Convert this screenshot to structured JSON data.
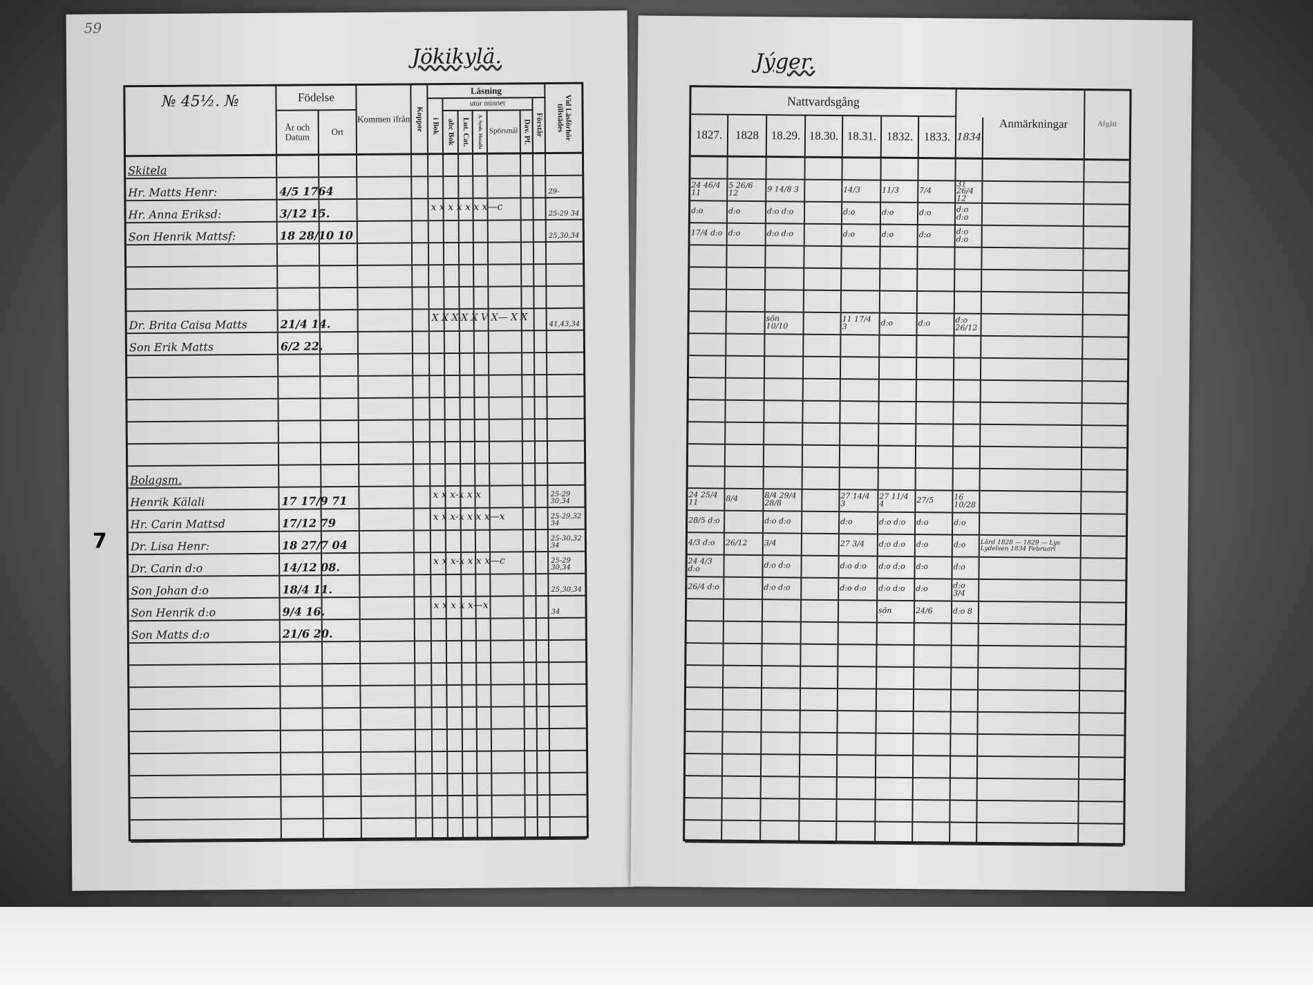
{
  "left_page": {
    "page_number": "59",
    "title": "Jökikylä.",
    "header": {
      "name_label": "№ 45½. №",
      "fodelse": "Födelse",
      "ar_och_datum": "År och Datum",
      "ort": "Ort",
      "kommen_ifran": "Kommen ifrån",
      "koppor": "Koppor",
      "lasning": "Läsning",
      "utur_minnet": "utur minnet",
      "i_bok": "i Bok",
      "abc_bok": "abc Bok",
      "lut_cat": "Lut. Cat.",
      "a_synb": "A. Synb. Husaila",
      "sporsmal": "Spörsmål",
      "dav_pf": "Dav. Pf.",
      "forstar": "Förstår",
      "vid_lasforhor": "Vid Läsförhör tillstädes"
    },
    "margin_mark": "7",
    "rows": [
      {
        "name": "Skitela",
        "date": "",
        "marks": "",
        "forhor": "",
        "heading": true
      },
      {
        "name": "Hr. Matts Henr:",
        "date": "4/5 1764",
        "marks": "",
        "forhor": "29-"
      },
      {
        "name": "Hr. Anna Eriksd:",
        "date": "3/12 15.",
        "marks": "x  x x x x x x—c",
        "forhor": "25-29 34"
      },
      {
        "name": "Son Henrik Mattsf:",
        "date": "18 28/10 10",
        "marks": "",
        "forhor": "25,30,34"
      },
      {
        "name": "",
        "date": "",
        "marks": "",
        "forhor": ""
      },
      {
        "name": "",
        "date": "",
        "marks": "",
        "forhor": ""
      },
      {
        "name": "",
        "date": "",
        "marks": "",
        "forhor": ""
      },
      {
        "name": "Dr. Brita Caisa Matts",
        "date": "21/4 14.",
        "marks": "X  X X-X X V X— X X",
        "forhor": "41,43,34"
      },
      {
        "name": "Son Erik  Matts",
        "date": "6/2 22.",
        "marks": "",
        "forhor": ""
      },
      {
        "name": "",
        "date": "",
        "marks": "",
        "forhor": ""
      },
      {
        "name": "",
        "date": "",
        "marks": "",
        "forhor": ""
      },
      {
        "name": "",
        "date": "",
        "marks": "",
        "forhor": ""
      },
      {
        "name": "",
        "date": "",
        "marks": "",
        "forhor": ""
      },
      {
        "name": "",
        "date": "",
        "marks": "",
        "forhor": ""
      },
      {
        "name": "Bolagsm.",
        "date": "",
        "marks": "",
        "forhor": "",
        "heading": true
      },
      {
        "name": "Henrik Kälali",
        "date": "17 17/9 71",
        "marks": "x  x x-x x x",
        "forhor": "25-29 30,34"
      },
      {
        "name": "Hr. Carin Mattsd",
        "date": "17/12 79",
        "marks": "x  x x-x x x x—x",
        "forhor": "25-29,32 34"
      },
      {
        "name": "Dr. Lisa Henr:",
        "date": "18 27/7 04",
        "marks": "",
        "forhor": "25-30,32 34"
      },
      {
        "name": "Dr. Carin d:o",
        "date": "14/12 08.",
        "marks": "x  x x-x x x x—c",
        "forhor": "25-29 30,34"
      },
      {
        "name": "Son Johan d:o",
        "date": "18/4 11.",
        "marks": "",
        "forhor": "25,30,34"
      },
      {
        "name": "Son Henrik d:o",
        "date": "9/4 16.",
        "marks": "x  x  x  x x—x",
        "forhor": "34"
      },
      {
        "name": "Son Matts d:o",
        "date": "21/6 20.",
        "marks": "",
        "forhor": ""
      }
    ]
  },
  "right_page": {
    "title": "Jýger.",
    "header": {
      "nattvardsgang": "Nattvardsgång",
      "years": [
        "1827.",
        "1828",
        "18.29.",
        "18.30.",
        "18.31.",
        "1832.",
        "1833.",
        "1834"
      ],
      "anmarkningar": "Anmärkningar",
      "afgatt": "Afgått"
    },
    "rows": [
      {
        "cells": []
      },
      {
        "cells": [
          "24 46/4 11",
          "5 26/6 12",
          "9 14/8 3",
          "",
          "14/3",
          "11/3",
          "7/4",
          "31 26/4 12"
        ]
      },
      {
        "cells": [
          "d:o",
          "d:o",
          "d:o d:o",
          "",
          "d:o",
          "d:o",
          "d:o",
          "d:o d:o"
        ]
      },
      {
        "cells": [
          "17/4 d:o",
          "d:o",
          "d:o d:o",
          "",
          "d:o",
          "d:o",
          "d:o",
          "d:o d:o"
        ]
      },
      {
        "cells": []
      },
      {
        "cells": []
      },
      {
        "cells": []
      },
      {
        "cells": [
          "",
          "",
          "sön 10/10",
          "",
          "11 17/4 3",
          "d:o",
          "d:o",
          "d:o 26/12"
        ]
      },
      {
        "cells": []
      },
      {
        "cells": []
      },
      {
        "cells": []
      },
      {
        "cells": []
      },
      {
        "cells": []
      },
      {
        "cells": []
      },
      {
        "cells": []
      },
      {
        "cells": [
          "24 25/4 11",
          "8/4",
          "8/4 29/4 28/8",
          "",
          "27 14/4 3",
          "27 11/4 4",
          "27/5",
          "16 10/28"
        ]
      },
      {
        "cells": [
          "28/5 d:o",
          "",
          "d:o d:o",
          "",
          "d:o",
          "d:o d:o",
          "d:o",
          "d:o"
        ]
      },
      {
        "cells": [
          "4/3 d:o",
          "26/12",
          "3/4",
          "",
          "27 3/4",
          "d:o d:o",
          "d:o",
          "d:o"
        ],
        "note": "Lärd 1828 — 1829 — Lys Lydelsen 1834 Februari"
      },
      {
        "cells": [
          "24 4/3 d:o",
          "",
          "d:o d:o",
          "",
          "d:o d:o",
          "d:o d:o",
          "d:o",
          "d:o"
        ]
      },
      {
        "cells": [
          "26/4 d:o",
          "",
          "d:o d:o",
          "",
          "d:o d:o",
          "d:o d:o",
          "d:o",
          "d:o 3/4"
        ]
      },
      {
        "cells": [
          "",
          "",
          "",
          "",
          "",
          "sön",
          "24/6",
          "d:o 8"
        ]
      },
      {
        "cells": []
      }
    ]
  }
}
